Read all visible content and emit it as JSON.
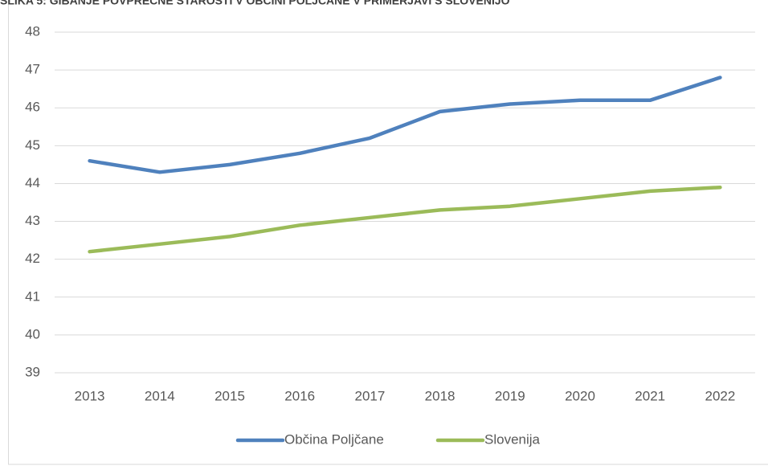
{
  "chart_data": {
    "type": "line",
    "title": "SLIKA 5: GIBANJE POVPREČNE STAROSTI V OBČINI POLJČANE V PRIMERJAVI S SLOVENIJO",
    "categories": [
      "2013",
      "2014",
      "2015",
      "2016",
      "2017",
      "2018",
      "2019",
      "2020",
      "2021",
      "2022"
    ],
    "series": [
      {
        "name": "Občina Poljčane",
        "color": "#4f81bd",
        "values": [
          44.6,
          44.3,
          44.5,
          44.8,
          45.2,
          45.9,
          46.1,
          46.2,
          46.2,
          46.8
        ]
      },
      {
        "name": "Slovenija",
        "color": "#9bbb59",
        "values": [
          42.2,
          42.4,
          42.6,
          42.9,
          43.1,
          43.3,
          43.4,
          43.6,
          43.8,
          43.9
        ]
      }
    ],
    "ylim": [
      39,
      48
    ],
    "yticks": [
      39,
      40,
      41,
      42,
      43,
      44,
      45,
      46,
      47,
      48
    ],
    "grid": true,
    "legend": "bottom"
  }
}
